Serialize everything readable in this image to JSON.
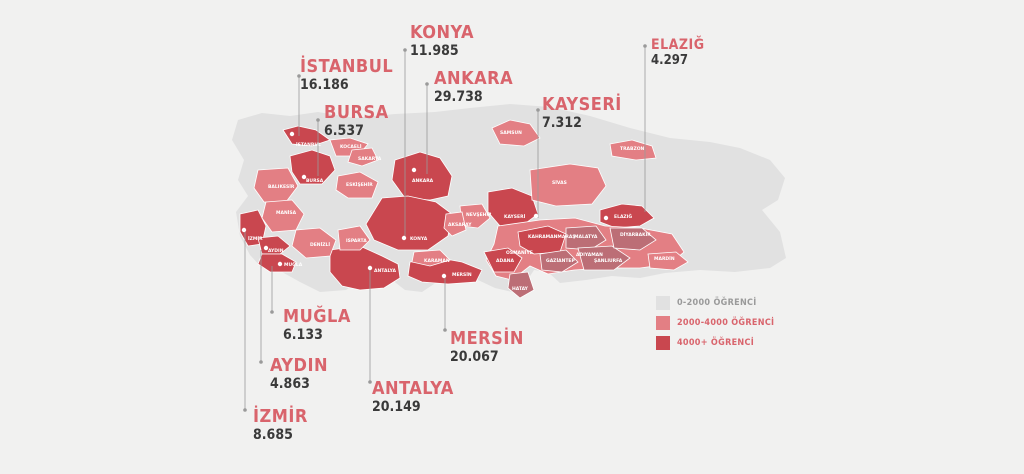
{
  "colors": {
    "background": "#f1f1f0",
    "low": "#e1e1e1",
    "mid": "#e37f84",
    "high": "#c9474f",
    "label": "#d9646c",
    "value": "#3a3a3a",
    "border": "#ffffff"
  },
  "cities": [
    {
      "name": "İSTANBUL",
      "value": "16.186"
    },
    {
      "name": "BURSA",
      "value": "6.537"
    },
    {
      "name": "KONYA",
      "value": "11.985"
    },
    {
      "name": "ANKARA",
      "value": "29.738"
    },
    {
      "name": "KAYSERİ",
      "value": "7.312"
    },
    {
      "name": "ELAZIĞ",
      "value": "4.297"
    },
    {
      "name": "MUĞLA",
      "value": "6.133"
    },
    {
      "name": "AYDIN",
      "value": "4.863"
    },
    {
      "name": "İZMİR",
      "value": "8.685"
    },
    {
      "name": "ANTALYA",
      "value": "20.149"
    },
    {
      "name": "MERSİN",
      "value": "20.067"
    }
  ],
  "map_labels": [
    "İSTANBUL",
    "KOCAELİ",
    "SAKARYA",
    "BURSA",
    "BALIKESİR",
    "ESKİŞEHİR",
    "ANKARA",
    "MANİSA",
    "DENİZLİ",
    "İZMİR",
    "AYDIN",
    "MUĞLA",
    "ISPARTA",
    "ANTALYA",
    "KONYA",
    "AKSARAY",
    "NEVŞEHİR",
    "KAYSERİ",
    "KARAMAN",
    "MERSİN",
    "ADANA",
    "OSMANİYE",
    "HATAY",
    "KAHRAMANMARAŞ",
    "MALATYA",
    "ELAZIĞ",
    "ADIYAMAN",
    "GAZİANTEP",
    "ŞANLIURFA",
    "DİYARBAKIR",
    "MARDİN",
    "SİVAS",
    "SAMSUN",
    "TRABZON"
  ],
  "legend": [
    {
      "label": "0-2000 ÖĞRENCİ",
      "level": "low"
    },
    {
      "label": "2000-4000 ÖĞRENCİ",
      "level": "mid"
    },
    {
      "label": "4000+ ÖĞRENCİ",
      "level": "high"
    }
  ]
}
